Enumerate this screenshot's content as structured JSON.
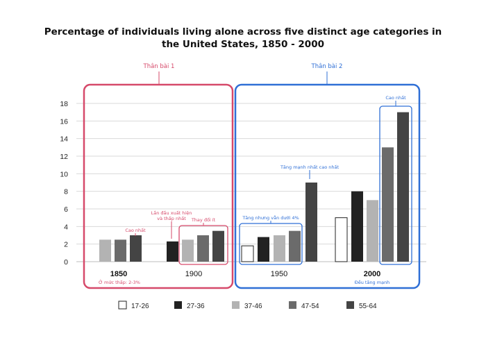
{
  "chart_data": {
    "type": "bar",
    "title": "Percentage of individuals living alone across five distinct age categories in the United States, 1850 - 2000",
    "title_lines": [
      "Percentage of individuals living alone across five distinct age categories in",
      "the United States, 1850 - 2000"
    ],
    "categories": [
      "1850",
      "1900",
      "1950",
      "2000"
    ],
    "ylim": [
      0,
      18
    ],
    "yticks": [
      "0",
      "2",
      "4",
      "6",
      "8",
      "10",
      "12",
      "14",
      "16",
      "18"
    ],
    "grid": true,
    "legend_position": "bottom",
    "series": [
      {
        "name": "17-26",
        "color": "#ffffff",
        "values": [
          null,
          null,
          1.8,
          5.0
        ]
      },
      {
        "name": "27-36",
        "color": "#222222",
        "values": [
          null,
          2.3,
          2.8,
          8.0
        ]
      },
      {
        "name": "37-46",
        "color": "#b3b3b3",
        "values": [
          2.5,
          2.5,
          3.0,
          7.0
        ]
      },
      {
        "name": "47-54",
        "color": "#6b6b6b",
        "values": [
          2.5,
          3.0,
          3.5,
          13.0
        ]
      },
      {
        "name": "55-64",
        "color": "#444444",
        "values": [
          3.0,
          3.5,
          9.0,
          17.0
        ]
      }
    ]
  },
  "annotations": {
    "body1": {
      "label": "Thân bài 1",
      "color": "#d6496a"
    },
    "body2": {
      "label": "Thân bài 2",
      "color": "#2f6fd6"
    },
    "cao_nhat_1850": "Cao nhất",
    "muc_thap_1850": "Ở mức thấp: 2-3%",
    "lan_dau_1": "Lần đầu xuất hiện",
    "lan_dau_2": "và thấp nhất",
    "thay_doi_it": "Thay đổi ít",
    "tang_nhung": "Tăng nhưng vẫn dưới 4%",
    "tang_manh_nhat": "Tăng mạnh nhất cao nhất",
    "cao_nhat_2000": "Cao nhất",
    "deu_tang_manh": "Đều tăng mạnh"
  }
}
